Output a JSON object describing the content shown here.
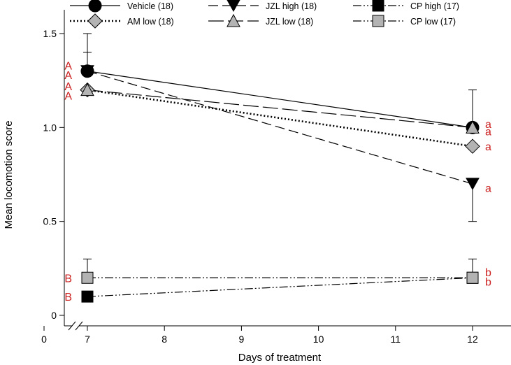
{
  "chart_data": {
    "type": "line",
    "xlabel": "Days of treatment",
    "ylabel": "Mean locomotion score",
    "xlim": [
      0,
      12.5
    ],
    "ylim": [
      0,
      1.5
    ],
    "x_axis_break": true,
    "x_ticks": [
      0,
      7,
      8,
      9,
      10,
      11,
      12
    ],
    "y_ticks": [
      0,
      0.5,
      1.0,
      1.5
    ],
    "x_tick_labels": [
      "0",
      "7",
      "8",
      "9",
      "10",
      "11",
      "12"
    ],
    "y_tick_labels": [
      "0",
      "0.5",
      "1.0",
      "1.5"
    ],
    "grid": false,
    "legend_position": "top",
    "series": [
      {
        "name": "Vehicle (18)",
        "x": [
          7,
          12
        ],
        "y": [
          1.3,
          1.0
        ],
        "err_up": [
          0.2,
          0.2
        ],
        "err_down": [
          0,
          0
        ],
        "marker": "circle",
        "fill": "#000000",
        "dash": "solid"
      },
      {
        "name": "AM low (18)",
        "x": [
          7,
          12
        ],
        "y": [
          1.2,
          0.9
        ],
        "err_up": [
          0,
          0
        ],
        "err_down": [
          0,
          0
        ],
        "marker": "diamond",
        "fill": "#b3b3b3",
        "dash": "dotted"
      },
      {
        "name": "JZL high (18)",
        "x": [
          7,
          12
        ],
        "y": [
          1.3,
          0.7
        ],
        "err_up": [
          0.1,
          0
        ],
        "err_down": [
          0,
          0.2
        ],
        "marker": "triangle-down",
        "fill": "#000000",
        "dash": "longdash"
      },
      {
        "name": "JZL low (18)",
        "x": [
          7,
          12
        ],
        "y": [
          1.2,
          1.0
        ],
        "err_up": [
          0,
          0
        ],
        "err_down": [
          0,
          0
        ],
        "marker": "triangle-up",
        "fill": "#b3b3b3",
        "dash": "dash"
      },
      {
        "name": "CP high (17)",
        "x": [
          7,
          12
        ],
        "y": [
          0.1,
          0.2
        ],
        "err_up": [
          0,
          0
        ],
        "err_down": [
          0,
          0
        ],
        "marker": "square",
        "fill": "#000000",
        "dash": "dashdotdot"
      },
      {
        "name": "CP low (17)",
        "x": [
          7,
          12
        ],
        "y": [
          0.2,
          0.2
        ],
        "err_up": [
          0.1,
          0.1
        ],
        "err_down": [
          0,
          0
        ],
        "marker": "square",
        "fill": "#b3b3b3",
        "dash": "dashdotdot"
      }
    ],
    "annotations": [
      {
        "text": "A",
        "x": 7,
        "y": 1.33,
        "side": "left"
      },
      {
        "text": "A",
        "x": 7,
        "y": 1.28,
        "side": "left"
      },
      {
        "text": "A",
        "x": 7,
        "y": 1.22,
        "side": "left"
      },
      {
        "text": "A",
        "x": 7,
        "y": 1.17,
        "side": "left"
      },
      {
        "text": "B",
        "x": 7,
        "y": 0.2,
        "side": "left"
      },
      {
        "text": "B",
        "x": 7,
        "y": 0.1,
        "side": "left"
      },
      {
        "text": "a",
        "x": 12,
        "y": 1.02,
        "side": "right"
      },
      {
        "text": "a",
        "x": 12,
        "y": 0.98,
        "side": "right"
      },
      {
        "text": "a",
        "x": 12,
        "y": 0.9,
        "side": "right"
      },
      {
        "text": "a",
        "x": 12,
        "y": 0.68,
        "side": "right"
      },
      {
        "text": "b",
        "x": 12,
        "y": 0.23,
        "side": "right"
      },
      {
        "text": "b",
        "x": 12,
        "y": 0.18,
        "side": "right"
      }
    ],
    "annotation_color": "#cc2222"
  }
}
